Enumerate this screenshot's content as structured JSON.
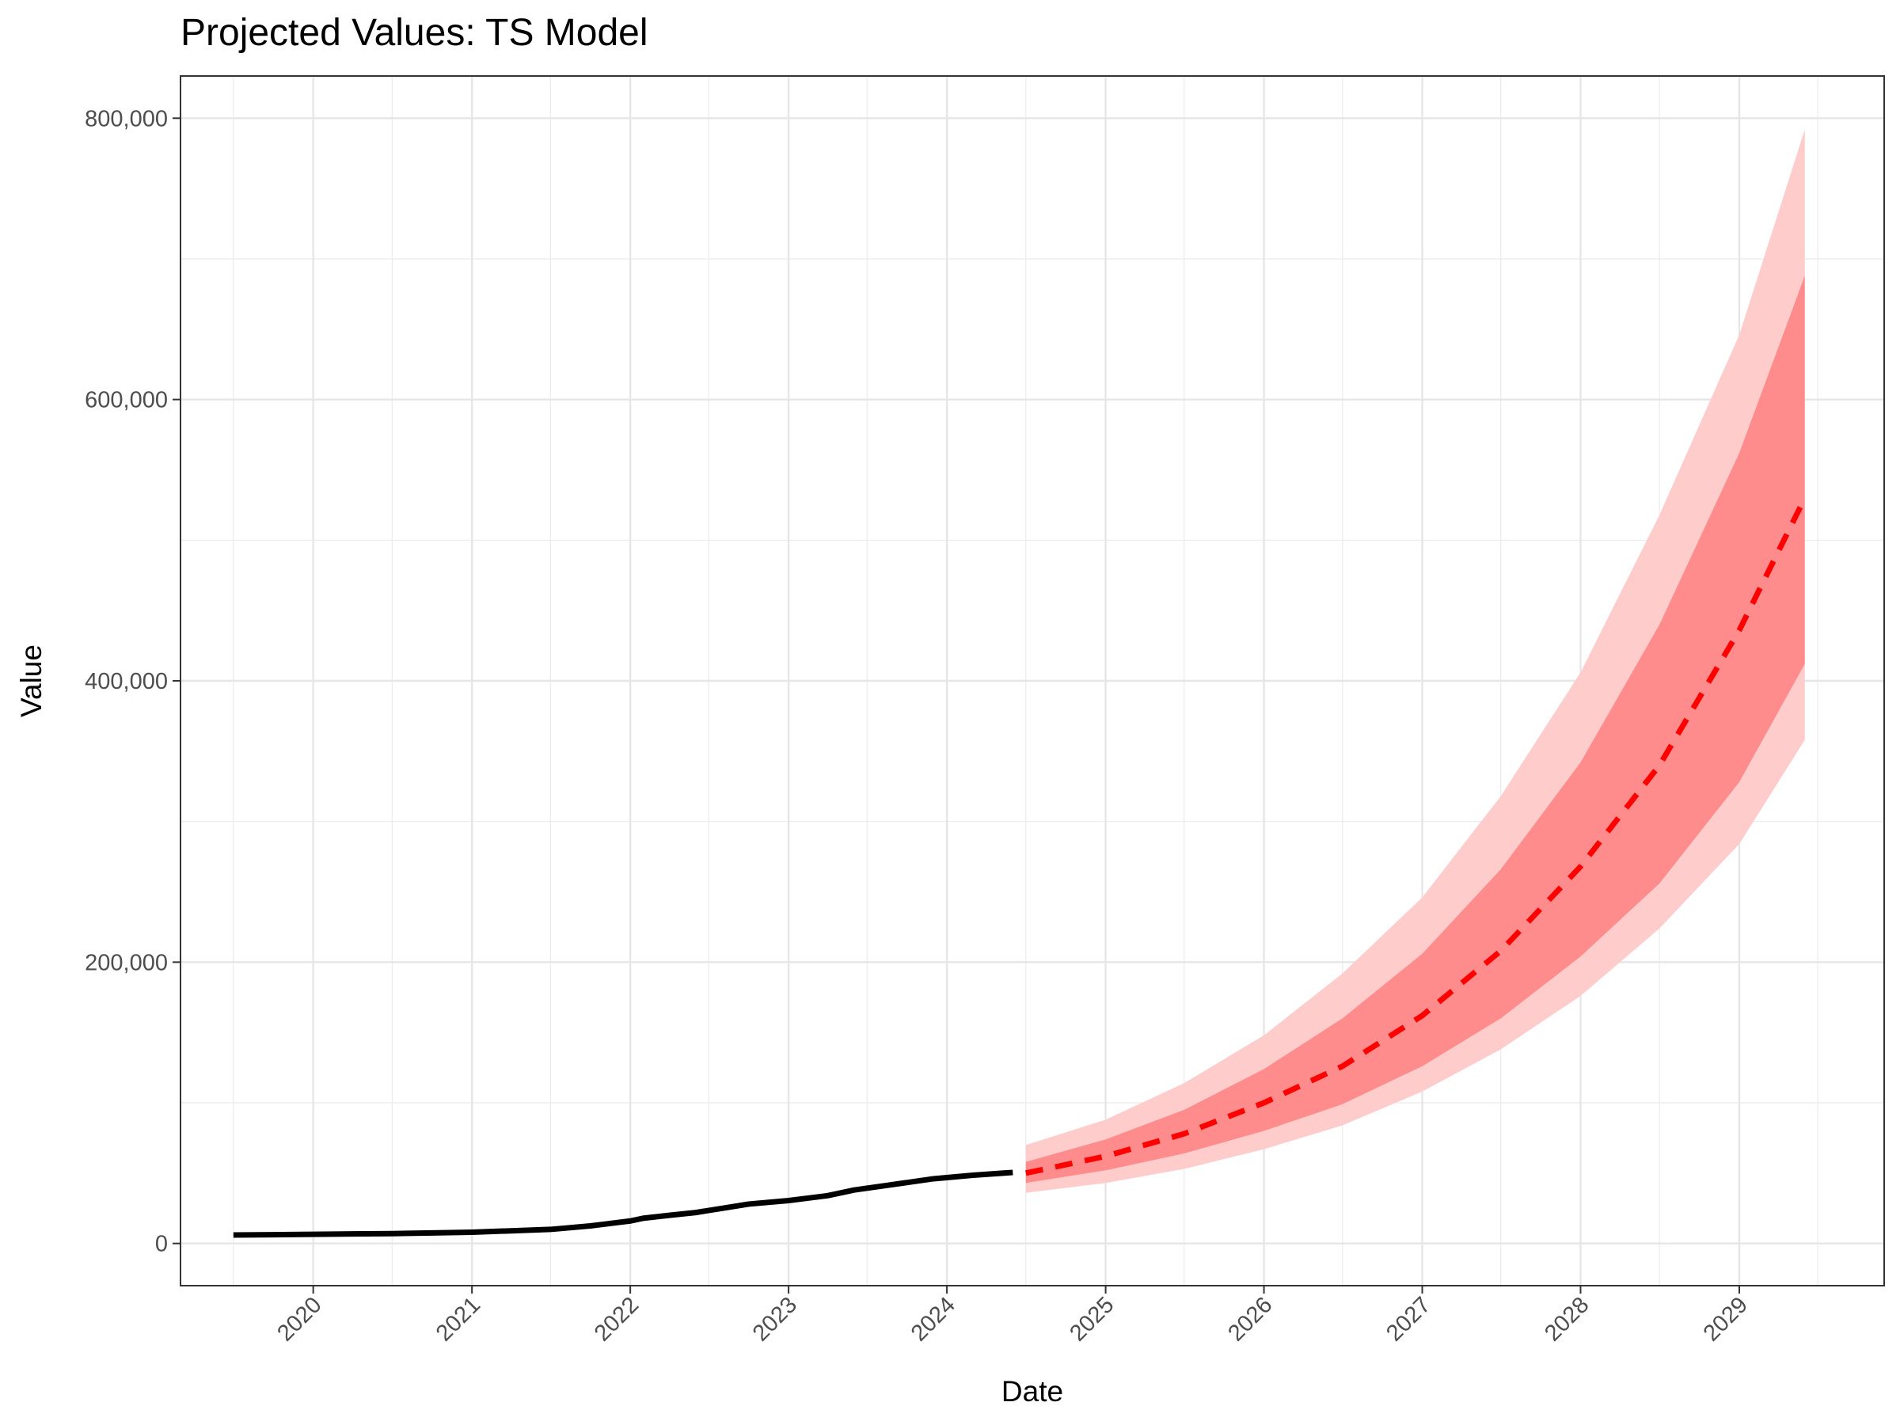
{
  "chart_data": {
    "type": "line",
    "title": "Projected Values: TS Model",
    "xlabel": "Date",
    "ylabel": "Value",
    "xlim": [
      "2019-03-01",
      "2029-12-01"
    ],
    "ylim": [
      -30000,
      830000
    ],
    "x_ticks": [
      "2020",
      "2021",
      "2022",
      "2023",
      "2024",
      "2025",
      "2026",
      "2027",
      "2028",
      "2029"
    ],
    "y_ticks": [
      0,
      200000,
      400000,
      600000,
      800000
    ],
    "y_tick_labels": [
      "0",
      "200,000",
      "400,000",
      "600,000",
      "800,000"
    ],
    "grid": true,
    "series": [
      {
        "role": "actual",
        "color": "#000000",
        "style": "solid",
        "x": [
          "2019-07-01",
          "2019-10-01",
          "2020-01-01",
          "2020-04-01",
          "2020-07-01",
          "2020-10-01",
          "2021-01-01",
          "2021-04-01",
          "2021-07-01",
          "2021-10-01",
          "2022-01-01",
          "2022-02-01",
          "2022-04-01",
          "2022-06-01",
          "2022-08-01",
          "2022-10-01",
          "2023-01-01",
          "2023-04-01",
          "2023-06-01",
          "2023-09-01",
          "2023-12-01",
          "2024-03-01",
          "2024-06-01"
        ],
        "y": [
          6000,
          6200,
          6500,
          6800,
          7000,
          7500,
          8000,
          9000,
          10000,
          12500,
          16000,
          18000,
          20000,
          22000,
          25000,
          28000,
          30500,
          34000,
          38000,
          42000,
          46000,
          48500,
          50500
        ]
      },
      {
        "role": "forecast",
        "color": "#ff0000",
        "style": "dashed",
        "x": [
          "2024-07-01",
          "2025-01-01",
          "2025-07-01",
          "2026-01-01",
          "2026-07-01",
          "2027-01-01",
          "2027-07-01",
          "2028-01-01",
          "2028-07-01",
          "2029-01-01",
          "2029-06-01"
        ],
        "y": [
          50000,
          62000,
          78000,
          100000,
          126000,
          162000,
          208000,
          268000,
          340000,
          436000,
          530000
        ],
        "band_80_lower": [
          43000,
          52000,
          64000,
          80000,
          99000,
          126000,
          160000,
          204000,
          256000,
          328000,
          412000
        ],
        "band_80_upper": [
          58000,
          74000,
          95000,
          124000,
          160000,
          206000,
          266000,
          342000,
          440000,
          562000,
          688000
        ],
        "band_95_lower": [
          36000,
          43000,
          53000,
          67000,
          84000,
          108000,
          138000,
          176000,
          224000,
          284000,
          358000
        ],
        "band_95_upper": [
          70000,
          88000,
          114000,
          148000,
          192000,
          246000,
          318000,
          406000,
          518000,
          646000,
          792000
        ],
        "band_80_color": "#ff8c8c",
        "band_95_color": "#ffcccc"
      }
    ]
  }
}
